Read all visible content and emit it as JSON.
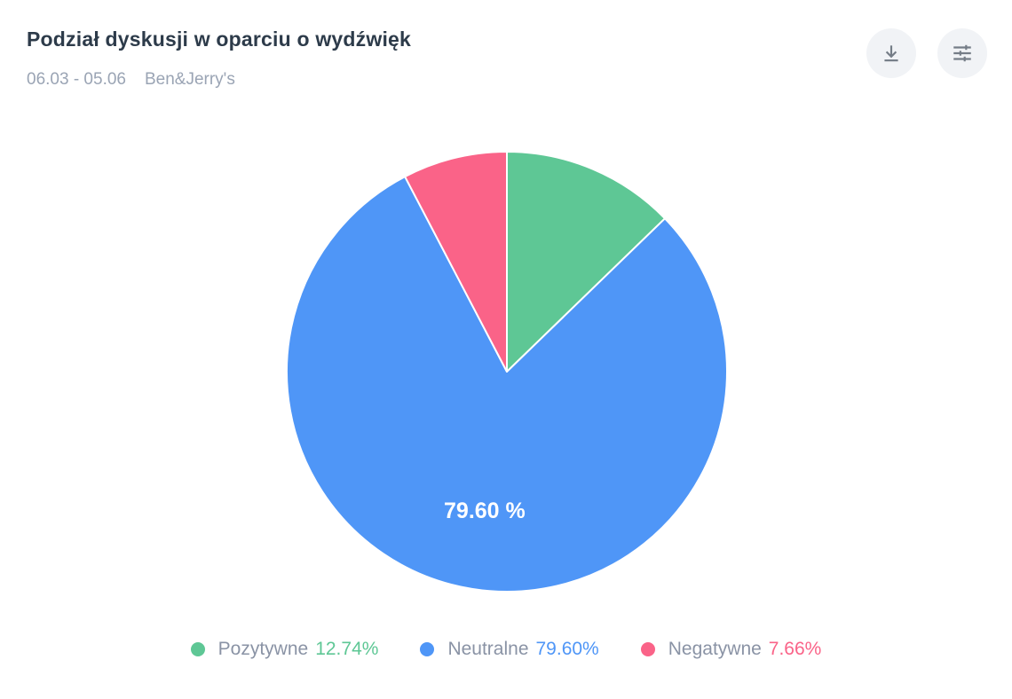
{
  "header": {
    "title": "Podział dyskusji w oparciu o wydźwięk",
    "date_range": "06.03 - 05.06",
    "brand": "Ben&Jerry's",
    "buttons": [
      {
        "name": "download",
        "icon": "download-icon"
      },
      {
        "name": "filters",
        "icon": "sliders-icon"
      }
    ]
  },
  "chart_data": {
    "type": "pie",
    "title": "Podział dyskusji w oparciu o wydźwięk",
    "start_angle_deg": 0,
    "direction": "clockwise",
    "legend_position": "bottom",
    "slice_separator_color": "#ffffff",
    "slices": [
      {
        "name": "Pozytywne",
        "value_pct": 12.74,
        "display": "12.74%",
        "color": "#5ec795",
        "inner_label": ""
      },
      {
        "name": "Neutralne",
        "value_pct": 79.6,
        "display": "79.60%",
        "color": "#4f96f7",
        "inner_label": "79.60 %"
      },
      {
        "name": "Negatywne",
        "value_pct": 7.66,
        "display": "7.66%",
        "color": "#fa6388",
        "inner_label": ""
      }
    ]
  },
  "colors": {
    "title_text": "#2d3b4a",
    "subtitle_text": "#9aa4b4",
    "legend_label_text": "#8a93a5",
    "icon_button_bg": "#f1f3f6",
    "icon_stroke": "#757d87",
    "background": "#ffffff"
  }
}
